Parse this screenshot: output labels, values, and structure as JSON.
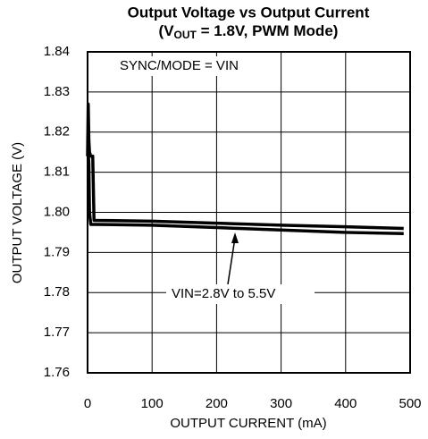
{
  "chart_data": {
    "type": "line",
    "title": "Output Voltage vs Output Current",
    "subtitle": [
      "(V",
      "OUT",
      " = 1.8V, PWM Mode)"
    ],
    "xlabel": "OUTPUT CURRENT (mA)",
    "ylabel": "OUTPUT VOLTAGE (V)",
    "annotations": [
      "SYNC/MODE = VIN",
      "VIN=2.8V to 5.5V"
    ],
    "x": [
      0,
      1,
      2,
      3,
      5,
      8,
      10,
      100,
      200,
      300,
      400,
      490
    ],
    "series": [
      {
        "color": "#000000",
        "values": [
          1.814,
          1.827,
          1.818,
          1.815,
          1.814,
          1.814,
          1.798,
          1.7978,
          1.7973,
          1.7968,
          1.7964,
          1.796
        ]
      },
      {
        "color": "#000000",
        "values": [
          1.814,
          1.815,
          1.812,
          1.8,
          1.797,
          1.797,
          1.797,
          1.7968,
          1.7962,
          1.7956,
          1.795,
          1.7947
        ]
      }
    ],
    "xlim": [
      0,
      500
    ],
    "xticks": [
      0,
      100,
      200,
      300,
      400,
      500
    ],
    "ylim": [
      1.76,
      1.84
    ],
    "yticks": [
      1.76,
      1.77,
      1.78,
      1.79,
      {
        "value": 1.8,
        "label": "1.80"
      },
      1.81,
      1.82,
      1.83,
      1.84
    ],
    "grid": true
  }
}
